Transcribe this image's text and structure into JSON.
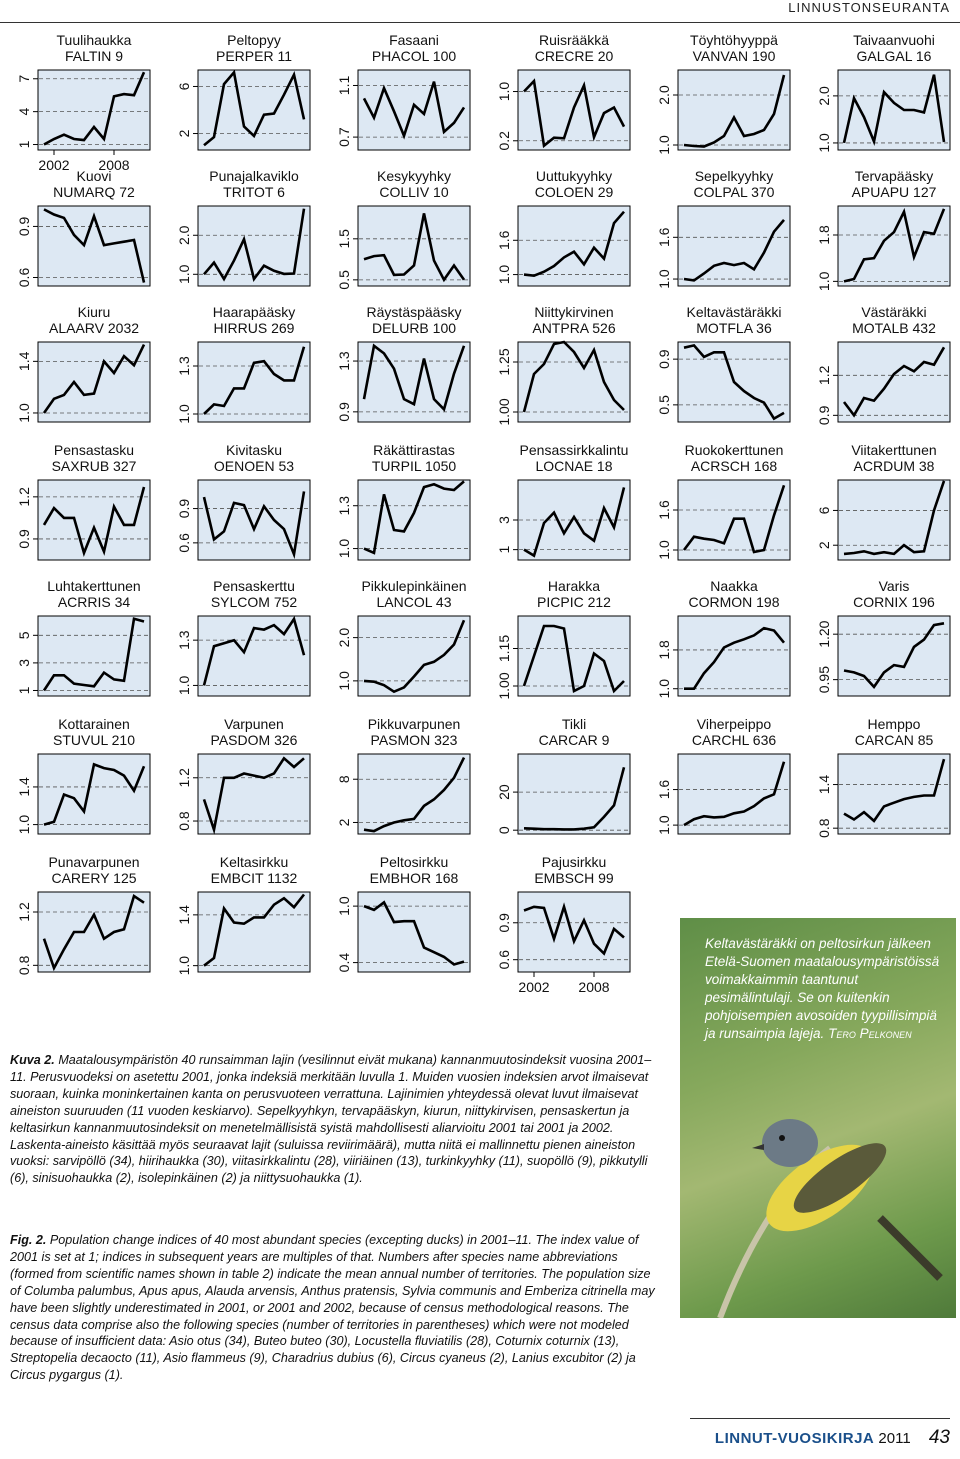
{
  "header": {
    "section": "LINNUSTONSEURANTA"
  },
  "chart_data": [
    {
      "type": "line",
      "title": "Tuulihaukka",
      "subtitle": "FALTIN 9",
      "yticks": [
        "1",
        "4",
        "7"
      ],
      "x": [
        2001,
        2002,
        2003,
        2004,
        2005,
        2006,
        2007,
        2008,
        2009,
        2010,
        2011
      ],
      "xticks": [
        "2002",
        "2008"
      ],
      "ylim": [
        0.5,
        7.8
      ],
      "values": [
        1,
        1.5,
        1.9,
        1.5,
        1.4,
        2.6,
        1.5,
        5.4,
        5.6,
        5.5,
        7.6
      ]
    },
    {
      "type": "line",
      "title": "Peltopyy",
      "subtitle": "PERPER 11",
      "yticks": [
        "2",
        "6"
      ],
      "ylim": [
        0.6,
        7.4
      ],
      "values": [
        1,
        1.7,
        6.2,
        7.2,
        2.6,
        1.8,
        3.6,
        3.7,
        5.3,
        7,
        3.2
      ]
    },
    {
      "type": "line",
      "title": "Fasaani",
      "subtitle": "PHACOL 100",
      "yticks": [
        "0.7",
        "1.1"
      ],
      "ylim": [
        0.6,
        1.22
      ],
      "values": [
        1,
        0.85,
        1.08,
        0.9,
        0.71,
        0.95,
        0.88,
        1.13,
        0.74,
        0.81,
        0.93
      ]
    },
    {
      "type": "line",
      "title": "Ruisrääkkä",
      "subtitle": "CRECRE 20",
      "yticks": [
        "0.2",
        "1.0"
      ],
      "ylim": [
        0.05,
        1.35
      ],
      "values": [
        1,
        1.17,
        0.12,
        0.25,
        0.24,
        0.74,
        1.1,
        0.26,
        0.65,
        0.74,
        0.43
      ]
    },
    {
      "type": "line",
      "title": "Töyhtöhyyppä",
      "subtitle": "VANVAN 190",
      "yticks": [
        "1.0",
        "2.0"
      ],
      "ylim": [
        0.9,
        2.5
      ],
      "values": [
        1,
        0.98,
        0.97,
        1.05,
        1.18,
        1.55,
        1.18,
        1.22,
        1.3,
        1.62,
        2.4
      ]
    },
    {
      "type": "line",
      "title": "Taivaanvuohi",
      "subtitle": "GALGAL 16",
      "yticks": [
        "1.0",
        "2.0"
      ],
      "ylim": [
        0.85,
        2.55
      ],
      "values": [
        1,
        1.95,
        1.55,
        1.03,
        2.08,
        1.85,
        1.7,
        1.7,
        1.65,
        2.45,
        1.02
      ]
    },
    {
      "type": "line",
      "title": "Kuovi",
      "subtitle": "NUMARQ 72",
      "yticks": [
        "0.6",
        "0.9"
      ],
      "ylim": [
        0.55,
        1.02
      ],
      "values": [
        1,
        0.97,
        0.95,
        0.85,
        0.79,
        0.96,
        0.79,
        0.8,
        0.81,
        0.82,
        0.57
      ]
    },
    {
      "type": "line",
      "title": "Punajalkaviklo",
      "subtitle": "TRITOT 6",
      "yticks": [
        "1.0",
        "2.0"
      ],
      "ylim": [
        0.7,
        2.75
      ],
      "values": [
        1,
        1.3,
        0.88,
        1.35,
        1.9,
        0.88,
        1.22,
        1.09,
        1.01,
        1.02,
        2.68
      ]
    },
    {
      "type": "line",
      "title": "Kesykyyhky",
      "subtitle": "COLLIV 10",
      "yticks": [
        "0.5",
        "1.5"
      ],
      "ylim": [
        0.35,
        2.3
      ],
      "values": [
        1,
        1.08,
        1.1,
        0.62,
        0.63,
        0.85,
        2.12,
        0.97,
        0.5,
        0.85,
        0.5
      ]
    },
    {
      "type": "line",
      "title": "Uuttukyyhky",
      "subtitle": "COLOEN 29",
      "yticks": [
        "1.0",
        "1.6"
      ],
      "ylim": [
        0.8,
        2.2
      ],
      "values": [
        1,
        0.98,
        1.05,
        1.15,
        1.3,
        1.4,
        1.18,
        1.47,
        1.28,
        1.9,
        2.1
      ]
    },
    {
      "type": "line",
      "title": "Sepelkyyhky",
      "subtitle": "COLPAL 370",
      "yticks": [
        "1.0",
        "1.6"
      ],
      "ylim": [
        0.9,
        2.05
      ],
      "values": [
        1,
        0.98,
        1.08,
        1.19,
        1.23,
        1.2,
        1.23,
        1.14,
        1.38,
        1.68,
        1.85
      ]
    },
    {
      "type": "line",
      "title": "Tervapääsky",
      "subtitle": "APUAPU 127",
      "yticks": [
        "1.0",
        "1.8"
      ],
      "ylim": [
        0.92,
        2.3
      ],
      "values": [
        1,
        1.04,
        1.38,
        1.4,
        1.7,
        1.85,
        2.2,
        1.42,
        1.85,
        1.82,
        2.25
      ]
    },
    {
      "type": "line",
      "title": "Kiuru",
      "subtitle": "ALAARV 2032",
      "yticks": [
        "1.0",
        "1.4"
      ],
      "ylim": [
        0.93,
        1.55
      ],
      "values": [
        1,
        1.11,
        1.14,
        1.24,
        1.14,
        1.15,
        1.4,
        1.31,
        1.44,
        1.37,
        1.53
      ]
    },
    {
      "type": "line",
      "title": "Haarapääsky",
      "subtitle": "HIRRUS 269",
      "yticks": [
        "1.0",
        "1.3"
      ],
      "ylim": [
        0.95,
        1.45
      ],
      "values": [
        1,
        1.06,
        1.05,
        1.16,
        1.16,
        1.32,
        1.33,
        1.25,
        1.21,
        1.21,
        1.42
      ]
    },
    {
      "type": "line",
      "title": "Räystäspääsky",
      "subtitle": "DELURB 100",
      "yticks": [
        "0.9",
        "1.3"
      ],
      "ylim": [
        0.82,
        1.45
      ],
      "values": [
        1,
        1.42,
        1.36,
        1.24,
        1,
        0.96,
        1.32,
        1,
        0.92,
        1.2,
        1.42
      ]
    },
    {
      "type": "line",
      "title": "Niittykirvinen",
      "subtitle": "ANTPRA 526",
      "yticks": [
        "1.00",
        "1.25"
      ],
      "ylim": [
        0.95,
        1.35
      ],
      "values": [
        1,
        1.19,
        1.24,
        1.34,
        1.35,
        1.3,
        1.22,
        1.31,
        1.15,
        1.06,
        1.01
      ]
    },
    {
      "type": "line",
      "title": "Keltavästäräkki",
      "subtitle": "MOTFLA 36",
      "yticks": [
        "0.5",
        "0.9"
      ],
      "ylim": [
        0.35,
        1.05
      ],
      "values": [
        1,
        1.02,
        0.92,
        0.96,
        0.96,
        0.7,
        0.62,
        0.56,
        0.52,
        0.38,
        0.43
      ]
    },
    {
      "type": "line",
      "title": "Västäräkki",
      "subtitle": "MOTALB 432",
      "yticks": [
        "0.9",
        "1.2"
      ],
      "ylim": [
        0.85,
        1.45
      ],
      "values": [
        1,
        0.9,
        1.03,
        1.01,
        1.1,
        1.21,
        1.27,
        1.23,
        1.3,
        1.28,
        1.41
      ]
    },
    {
      "type": "line",
      "title": "Pensastasku",
      "subtitle": "SAXRUB 327",
      "yticks": [
        "0.9",
        "1.2"
      ],
      "ylim": [
        0.75,
        1.32
      ],
      "values": [
        1,
        1.12,
        1.05,
        1.05,
        0.8,
        0.98,
        0.81,
        1.13,
        1,
        1,
        1.27
      ]
    },
    {
      "type": "line",
      "title": "Kivitasku",
      "subtitle": "OENOEN 53",
      "yticks": [
        "0.6",
        "0.9"
      ],
      "ylim": [
        0.45,
        1.15
      ],
      "values": [
        1,
        0.63,
        0.7,
        0.95,
        0.93,
        0.72,
        0.92,
        0.8,
        0.72,
        0.5,
        1.05
      ]
    },
    {
      "type": "line",
      "title": "Räkättirastas",
      "subtitle": "TURPIL 1050",
      "yticks": [
        "1.0",
        "1.3"
      ],
      "ylim": [
        0.92,
        1.48
      ],
      "values": [
        1,
        0.97,
        1.38,
        1.13,
        1.12,
        1.25,
        1.43,
        1.45,
        1.42,
        1.41,
        1.47
      ]
    },
    {
      "type": "line",
      "title": "Pensassirkkalintu",
      "subtitle": "LOCNAE 18",
      "yticks": [
        "1",
        "3"
      ],
      "ylim": [
        0.3,
        5.7
      ],
      "values": [
        1,
        0.6,
        2.8,
        3.5,
        2.1,
        3.2,
        2.1,
        1.6,
        3.8,
        2.5,
        5.2
      ]
    },
    {
      "type": "line",
      "title": "Ruokokerttunen",
      "subtitle": "ACRSCH 168",
      "yticks": [
        "1.0",
        "1.6"
      ],
      "ylim": [
        0.85,
        2.05
      ],
      "values": [
        1,
        1.2,
        1.17,
        1.15,
        1.1,
        1.47,
        1.47,
        0.97,
        1,
        1.52,
        1.97
      ]
    },
    {
      "type": "line",
      "title": "Viitakerttunen",
      "subtitle": "ACRDUM 38",
      "yticks": [
        "2",
        "6"
      ],
      "ylim": [
        0.3,
        9.5
      ],
      "values": [
        1,
        1.1,
        1.3,
        1,
        1.2,
        1,
        2,
        1.2,
        1.3,
        6,
        9.4
      ]
    },
    {
      "type": "line",
      "title": "Luhtakerttunen",
      "subtitle": "ACRRIS 34",
      "yticks": [
        "1",
        "3",
        "5"
      ],
      "ylim": [
        0.6,
        6.4
      ],
      "values": [
        1,
        2.1,
        2.1,
        1.5,
        1.4,
        1.3,
        2.3,
        1.8,
        1.7,
        6.2,
        6
      ]
    },
    {
      "type": "line",
      "title": "Pensaskerttu",
      "subtitle": "SYLCOM 752",
      "yticks": [
        "1.0",
        "1.3"
      ],
      "ylim": [
        0.93,
        1.46
      ],
      "values": [
        1,
        1.26,
        1.28,
        1.3,
        1.22,
        1.38,
        1.37,
        1.4,
        1.34,
        1.44,
        1.2
      ]
    },
    {
      "type": "line",
      "title": "Pikkulepinkäinen",
      "subtitle": "LANCOL 43",
      "yticks": [
        "1.0",
        "2.0"
      ],
      "ylim": [
        0.65,
        2.5
      ],
      "values": [
        1,
        0.98,
        0.9,
        0.75,
        0.85,
        1.1,
        1.37,
        1.44,
        1.6,
        1.84,
        2.4
      ]
    },
    {
      "type": "line",
      "title": "Harakka",
      "subtitle": "PICPIC 212",
      "yticks": [
        "1.00",
        "1.15"
      ],
      "ylim": [
        0.96,
        1.28
      ],
      "values": [
        1,
        1.12,
        1.24,
        1.24,
        1.23,
        0.98,
        1,
        1.13,
        1.1,
        0.98,
        1.02
      ]
    },
    {
      "type": "line",
      "title": "Naakka",
      "subtitle": "CORMON 198",
      "yticks": [
        "1.0",
        "1.8"
      ],
      "ylim": [
        0.85,
        2.5
      ],
      "values": [
        1,
        1,
        1.32,
        1.55,
        1.85,
        1.95,
        2.02,
        2.1,
        2.25,
        2.2,
        1.95
      ]
    },
    {
      "type": "line",
      "title": "Varis",
      "subtitle": "CORNIX 196",
      "yticks": [
        "0.95",
        "1.20"
      ],
      "ylim": [
        0.86,
        1.3
      ],
      "values": [
        1,
        0.99,
        0.97,
        0.91,
        0.99,
        1.03,
        1.02,
        1.13,
        1.17,
        1.25,
        1.26
      ]
    },
    {
      "type": "line",
      "title": "Kottarainen",
      "subtitle": "STUVUL 210",
      "yticks": [
        "1.0",
        "1.4"
      ],
      "ylim": [
        0.9,
        1.75
      ],
      "values": [
        1,
        1.03,
        1.32,
        1.28,
        1.14,
        1.64,
        1.6,
        1.58,
        1.52,
        1.36,
        1.62
      ]
    },
    {
      "type": "line",
      "title": "Varpunen",
      "subtitle": "PASDOM 326",
      "yticks": [
        "0.8",
        "1.2"
      ],
      "ylim": [
        0.68,
        1.42
      ],
      "values": [
        1,
        0.72,
        1.2,
        1.2,
        1.24,
        1.22,
        1.2,
        1.24,
        1.38,
        1.3,
        1.38
      ]
    },
    {
      "type": "line",
      "title": "Pikkuvarpunen",
      "subtitle": "PASMON 323",
      "yticks": [
        "2",
        "8"
      ],
      "ylim": [
        0.4,
        11.5
      ],
      "values": [
        1,
        0.8,
        1.5,
        2,
        2.3,
        2.5,
        4.3,
        5.2,
        6.5,
        8.2,
        11
      ]
    },
    {
      "type": "line",
      "title": "Tikli",
      "subtitle": "CARCAR 9",
      "yticks": [
        "0",
        "20"
      ],
      "ylim": [
        -2,
        40
      ],
      "values": [
        1,
        0.8,
        0.5,
        0.5,
        0.4,
        0.4,
        0.8,
        1.5,
        7,
        13,
        33
      ]
    },
    {
      "type": "line",
      "title": "Viherpeippo",
      "subtitle": "CARCHL 636",
      "yticks": [
        "1.0",
        "1.6"
      ],
      "ylim": [
        0.85,
        2.2
      ],
      "values": [
        1,
        1.1,
        1.15,
        1.13,
        1.14,
        1.2,
        1.23,
        1.32,
        1.45,
        1.52,
        2.07
      ]
    },
    {
      "type": "line",
      "title": "Hemppo",
      "subtitle": "CARCAN 85",
      "yticks": [
        "0.8",
        "1.4"
      ],
      "ylim": [
        0.72,
        1.82
      ],
      "values": [
        1,
        0.92,
        1.02,
        0.9,
        1.1,
        1.15,
        1.2,
        1.23,
        1.25,
        1.25,
        1.75
      ]
    },
    {
      "type": "line",
      "title": "Punavarpunen",
      "subtitle": "CARERY 125",
      "yticks": [
        "0.8",
        "1.2"
      ],
      "ylim": [
        0.75,
        1.35
      ],
      "values": [
        1,
        0.78,
        0.92,
        1.05,
        1.05,
        1.18,
        1,
        1.05,
        1.07,
        1.32,
        1.27
      ]
    },
    {
      "type": "line",
      "title": "Keltasirkku",
      "subtitle": "EMBCIT 1132",
      "yticks": [
        "1.0",
        "1.4"
      ],
      "ylim": [
        0.95,
        1.58
      ],
      "values": [
        1,
        1.06,
        1.45,
        1.34,
        1.33,
        1.38,
        1.38,
        1.48,
        1.53,
        1.46,
        1.56
      ]
    },
    {
      "type": "line",
      "title": "Peltosirkku",
      "subtitle": "EMBHOR 168",
      "yticks": [
        "0.4",
        "1.0"
      ],
      "ylim": [
        0.3,
        1.15
      ],
      "values": [
        1,
        0.96,
        1.04,
        0.83,
        0.84,
        0.84,
        0.56,
        0.51,
        0.46,
        0.38,
        0.41
      ]
    },
    {
      "type": "line",
      "title": "Pajusirkku",
      "subtitle": "EMBSCH 99",
      "yticks": [
        "0.6",
        "0.9"
      ],
      "ylim": [
        0.5,
        1.15
      ],
      "xticks": [
        "2002",
        "2008"
      ],
      "values": [
        1,
        1.03,
        1.02,
        0.77,
        1.03,
        0.75,
        0.92,
        0.73,
        0.65,
        0.85,
        0.78
      ]
    }
  ],
  "photo": {
    "caption": "Keltavästäräkki on peltosirkun jälkeen Etelä-Suomen maatalousympäristöissä voimakkaimmin taantunut pesimälintulaji. Se on kuitenkin pohjoisempien avosoiden tyypillisimpiä ja runsaimpia lajeja.",
    "credit": "Tero Pelkonen"
  },
  "caption_fi": {
    "label": "Kuva 2.",
    "text": "Maatalousympäristön 40 runsaimman lajin (vesilinnut eivät mukana) kannanmuutosindeksit vuosina 2001–11. Perusvuodeksi on asetettu 2001, jonka indeksiä merkitään luvulla 1. Muiden vuosien indeksien arvot ilmaisevat suoraan, kuinka moninkertainen kanta on perusvuoteen verrattuna. Lajinimien yhteydessä olevat luvut ilmaisevat aineiston suuruuden (11 vuoden keskiarvo). Sepelkyyhkyn, tervapääskyn, kiurun, niittykirvisen, pensaskertun ja keltasirkun kannanmuutosindeksit on menetelmällisistä syistä mahdollisesti aliarvioitu 2001 tai 2001 ja 2002. Laskenta-aineisto käsittää myös seuraavat lajit (suluissa reviirimäärä), mutta niitä ei mallinnettu pienen aineiston vuoksi: sarvipöllö (34), hiirihaukka (30), viitasirkkalintu (28), viiriäinen (13), turkinkyyhky (11), suopöllö (9), pikkutylli (6), sinisuohaukka (2), isolepinkäinen (2) ja niittysuohaukka (1)."
  },
  "caption_en": {
    "label": "Fig. 2.",
    "text": "Population change indices of 40 most abundant species (excepting ducks) in 2001–11. The index value of 2001 is set at 1; indices in subsequent years are multiples of that. Numbers after species name abbreviations (formed from scientific names shown in table 2) indicate the mean annual number of territories. The population size of Columba palumbus, Apus apus, Alauda arvensis, Anthus pratensis, Sylvia communis and Emberiza citrinella may have been slightly underestimated in 2001, or 2001 and 2002, because of census methodological reasons. The census data comprise also the following species (number of territories in parentheses) which were not modeled because of insufficient data: Asio otus (34), Buteo buteo (30), Locustella fluviatilis (28), Coturnix coturnix (13), Streptopelia decaocto (11), Asio flammeus (9), Charadrius dubius (6), Circus cyaneus (2), Lanius excubitor (2) ja Circus pygargus (1)."
  },
  "footer": {
    "journal": "LINNUT-VUOSIKIRJA",
    "year": "2011",
    "page": "43"
  },
  "colors": {
    "panel_bg": "#dde8f3",
    "line": "#000000",
    "journal": "#1a4f8a"
  }
}
